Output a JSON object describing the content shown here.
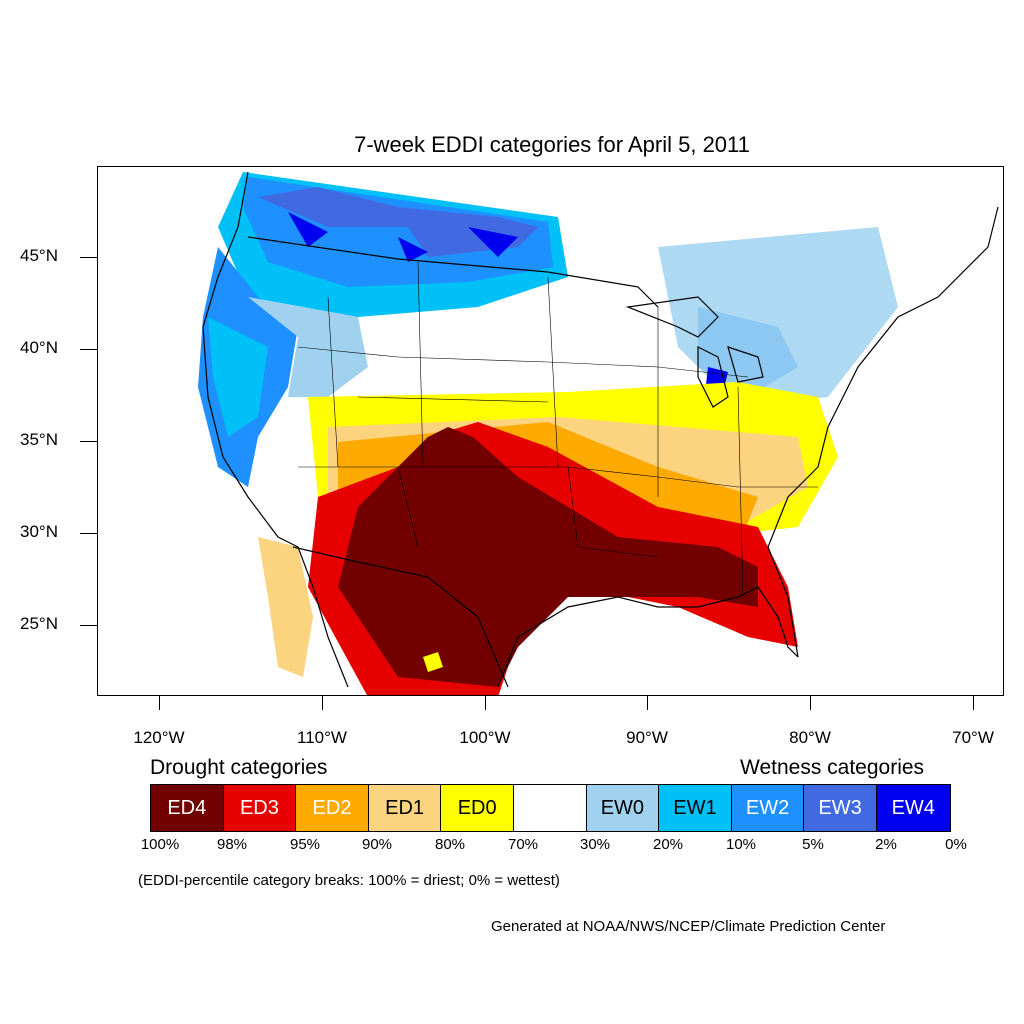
{
  "title": "7-week EDDI categories for April 5, 2011",
  "lat_labels": [
    "45°N",
    "40°N",
    "35°N",
    "30°N",
    "25°N"
  ],
  "lon_labels": [
    "120°W",
    "110°W",
    "100°W",
    "90°W",
    "80°W",
    "70°W"
  ],
  "drought_heading": "Drought categories",
  "wetness_heading": "Wetness categories",
  "categories": [
    {
      "label": "ED4",
      "color": "#730000",
      "text_color": "#ffffff"
    },
    {
      "label": "ED3",
      "color": "#e60000",
      "text_color": "#ffffff"
    },
    {
      "label": "ED2",
      "color": "#ffaa00",
      "text_color": "#ffffff"
    },
    {
      "label": "ED1",
      "color": "#fcd37f",
      "text_color": "#000000"
    },
    {
      "label": "ED0",
      "color": "#ffff00",
      "text_color": "#000000"
    },
    {
      "label": "",
      "color": "#ffffff",
      "text_color": "#000000"
    },
    {
      "label": "EW0",
      "color": "#a0d2f0",
      "text_color": "#000000"
    },
    {
      "label": "EW1",
      "color": "#00c0f8",
      "text_color": "#000000"
    },
    {
      "label": "EW2",
      "color": "#1e90ff",
      "text_color": "#ffffff"
    },
    {
      "label": "EW3",
      "color": "#4169e1",
      "text_color": "#ffffff"
    },
    {
      "label": "EW4",
      "color": "#0000f0",
      "text_color": "#ffffff"
    }
  ],
  "percent_breaks": [
    "100%",
    "98%",
    "95%",
    "90%",
    "80%",
    "70%",
    "30%",
    "20%",
    "10%",
    "5%",
    "2%",
    "0%"
  ],
  "note": "(EDDI-percentile category breaks: 100% = driest; 0% = wettest)",
  "credit": "Generated at NOAA/NWS/NCEP/Climate Prediction Center"
}
